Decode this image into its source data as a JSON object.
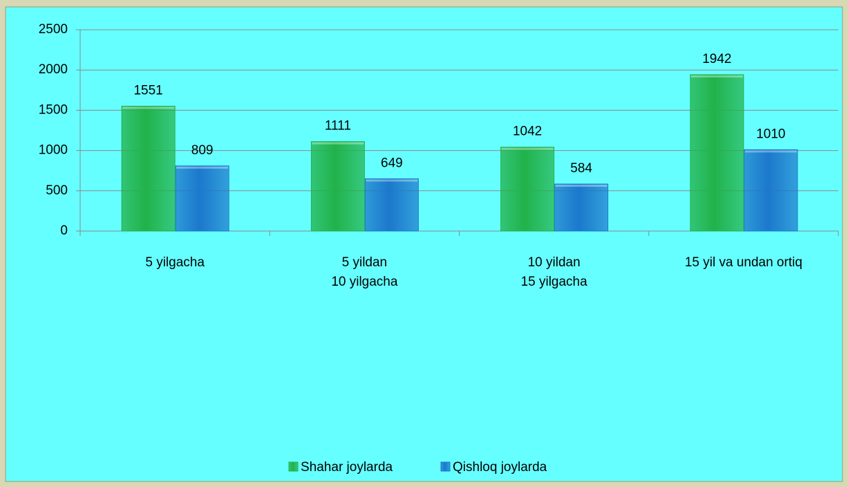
{
  "chart_data": {
    "type": "bar",
    "categories": [
      "5 yilgacha",
      "5 yildan\n10 yilgacha",
      "10 yildan\n15 yilgacha",
      "15 yil va undan ortiq"
    ],
    "series": [
      {
        "name": "Shahar joylarda",
        "color": "#21b24a",
        "values": [
          1551,
          1111,
          1042,
          1942
        ]
      },
      {
        "name": "Qishloq joylarda",
        "color": "#1c78cc",
        "values": [
          809,
          649,
          584,
          1010
        ]
      }
    ],
    "ylim": [
      0,
      2500
    ],
    "yticks": [
      0,
      500,
      1000,
      1500,
      2000,
      2500
    ],
    "grid": true,
    "legend": "bottom"
  }
}
